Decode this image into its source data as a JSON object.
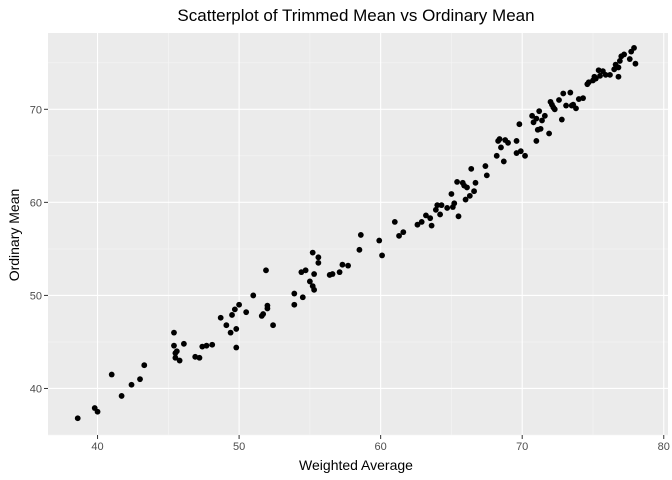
{
  "chart_data": {
    "type": "scatter",
    "title": "Scatterplot of Trimmed Mean vs Ordinary Mean",
    "xlabel": "Weighted Average",
    "ylabel": "Ordinary Mean",
    "xlim": [
      36.5,
      80.3
    ],
    "ylim": [
      35.0,
      78.2
    ],
    "xticks": [
      40,
      50,
      60,
      70,
      80
    ],
    "yticks": [
      40,
      50,
      60,
      70
    ],
    "grid": true,
    "legend": "none",
    "colors": {
      "panel": "#ebebeb",
      "grid_major": "#ffffff",
      "grid_minor": "#f5f5f5",
      "point": "#000000",
      "tick": "#333333"
    },
    "points": [
      [
        38.6,
        36.8
      ],
      [
        39.8,
        37.9
      ],
      [
        40.0,
        37.5
      ],
      [
        41.0,
        41.5
      ],
      [
        41.7,
        39.2
      ],
      [
        42.4,
        40.4
      ],
      [
        43.0,
        41.0
      ],
      [
        43.3,
        42.5
      ],
      [
        45.4,
        46.0
      ],
      [
        45.4,
        44.6
      ],
      [
        45.5,
        43.8
      ],
      [
        45.5,
        43.3
      ],
      [
        45.6,
        44.0
      ],
      [
        45.8,
        43.0
      ],
      [
        46.1,
        44.8
      ],
      [
        46.9,
        43.4
      ],
      [
        47.2,
        43.3
      ],
      [
        47.4,
        44.5
      ],
      [
        47.7,
        44.6
      ],
      [
        48.1,
        44.7
      ],
      [
        48.7,
        47.6
      ],
      [
        49.1,
        46.8
      ],
      [
        49.4,
        46.0
      ],
      [
        49.5,
        47.9
      ],
      [
        49.7,
        48.5
      ],
      [
        49.8,
        46.4
      ],
      [
        49.8,
        44.4
      ],
      [
        50.0,
        49.0
      ],
      [
        50.5,
        48.2
      ],
      [
        51.0,
        50.0
      ],
      [
        51.6,
        47.8
      ],
      [
        51.7,
        48.0
      ],
      [
        51.9,
        52.7
      ],
      [
        52.0,
        48.9
      ],
      [
        52.0,
        48.6
      ],
      [
        52.4,
        46.8
      ],
      [
        53.9,
        49.0
      ],
      [
        53.9,
        50.2
      ],
      [
        54.4,
        52.5
      ],
      [
        54.5,
        49.8
      ],
      [
        54.7,
        52.7
      ],
      [
        55.0,
        51.5
      ],
      [
        55.2,
        54.6
      ],
      [
        55.2,
        51.0
      ],
      [
        55.3,
        50.6
      ],
      [
        55.3,
        52.3
      ],
      [
        55.6,
        53.5
      ],
      [
        55.6,
        54.1
      ],
      [
        56.4,
        52.2
      ],
      [
        56.6,
        52.3
      ],
      [
        57.1,
        52.5
      ],
      [
        57.3,
        53.3
      ],
      [
        57.7,
        53.2
      ],
      [
        58.5,
        54.9
      ],
      [
        58.6,
        56.5
      ],
      [
        59.9,
        55.9
      ],
      [
        60.1,
        54.3
      ],
      [
        61.0,
        57.9
      ],
      [
        61.3,
        56.4
      ],
      [
        61.6,
        56.8
      ],
      [
        62.6,
        57.6
      ],
      [
        62.9,
        57.9
      ],
      [
        63.2,
        58.6
      ],
      [
        63.5,
        58.3
      ],
      [
        63.6,
        57.5
      ],
      [
        63.9,
        59.2
      ],
      [
        64.0,
        59.7
      ],
      [
        64.2,
        58.7
      ],
      [
        64.3,
        59.7
      ],
      [
        64.7,
        59.4
      ],
      [
        65.0,
        60.9
      ],
      [
        65.1,
        59.5
      ],
      [
        65.2,
        59.9
      ],
      [
        65.4,
        62.2
      ],
      [
        65.5,
        58.5
      ],
      [
        65.8,
        62.1
      ],
      [
        65.9,
        61.8
      ],
      [
        66.0,
        60.3
      ],
      [
        66.1,
        61.6
      ],
      [
        66.3,
        60.7
      ],
      [
        66.4,
        63.6
      ],
      [
        66.6,
        61.2
      ],
      [
        66.7,
        62.1
      ],
      [
        67.4,
        63.9
      ],
      [
        67.5,
        62.9
      ],
      [
        68.2,
        65.0
      ],
      [
        68.3,
        66.6
      ],
      [
        68.4,
        66.8
      ],
      [
        68.5,
        65.9
      ],
      [
        68.7,
        64.4
      ],
      [
        68.8,
        66.7
      ],
      [
        69.0,
        66.4
      ],
      [
        69.6,
        66.6
      ],
      [
        69.6,
        65.3
      ],
      [
        69.8,
        68.4
      ],
      [
        69.9,
        65.5
      ],
      [
        70.2,
        65.0
      ],
      [
        70.7,
        69.3
      ],
      [
        70.8,
        68.6
      ],
      [
        71.0,
        69.0
      ],
      [
        71.0,
        66.6
      ],
      [
        71.1,
        67.8
      ],
      [
        71.2,
        69.8
      ],
      [
        71.3,
        67.9
      ],
      [
        71.4,
        68.8
      ],
      [
        71.6,
        69.3
      ],
      [
        71.9,
        67.4
      ],
      [
        72.0,
        70.8
      ],
      [
        72.1,
        70.5
      ],
      [
        72.2,
        70.2
      ],
      [
        72.3,
        70.0
      ],
      [
        72.6,
        71.0
      ],
      [
        72.8,
        68.9
      ],
      [
        72.9,
        71.7
      ],
      [
        73.1,
        70.4
      ],
      [
        73.4,
        71.8
      ],
      [
        73.5,
        70.4
      ],
      [
        73.6,
        70.5
      ],
      [
        73.8,
        70.1
      ],
      [
        74.0,
        71.1
      ],
      [
        74.3,
        71.2
      ],
      [
        74.6,
        72.7
      ],
      [
        74.7,
        72.9
      ],
      [
        75.0,
        73.1
      ],
      [
        75.1,
        73.5
      ],
      [
        75.2,
        73.3
      ],
      [
        75.4,
        74.2
      ],
      [
        75.5,
        73.6
      ],
      [
        75.7,
        74.1
      ],
      [
        75.9,
        73.7
      ],
      [
        76.2,
        73.7
      ],
      [
        76.5,
        74.3
      ],
      [
        76.6,
        74.8
      ],
      [
        76.8,
        73.5
      ],
      [
        76.8,
        74.5
      ],
      [
        76.9,
        75.2
      ],
      [
        77.0,
        75.7
      ],
      [
        77.2,
        75.9
      ],
      [
        77.6,
        75.4
      ],
      [
        77.7,
        76.2
      ],
      [
        77.9,
        76.6
      ],
      [
        78.0,
        74.9
      ]
    ]
  }
}
